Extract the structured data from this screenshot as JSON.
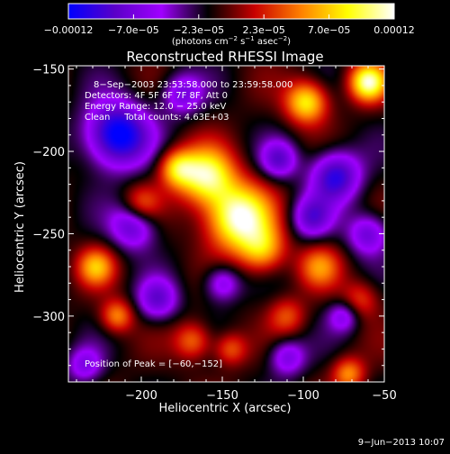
{
  "chart_data": {
    "type": "heatmap",
    "title": "Reconstructed RHESSI Image",
    "xlabel": "Heliocentric X (arcsec)",
    "ylabel": "Heliocentric Y (arcsec)",
    "xlim": [
      -245,
      -50
    ],
    "ylim": [
      -340,
      -148
    ],
    "x_ticks": [
      -200,
      -150,
      -100,
      -50
    ],
    "x_tick_labels": [
      "−200",
      "−150",
      "−100",
      "−50"
    ],
    "y_ticks": [
      -150,
      -200,
      -250,
      -300
    ],
    "y_tick_labels": [
      "−150",
      "−200",
      "−250",
      "−300"
    ],
    "colorbar": {
      "min": -0.00012,
      "max": 0.00012,
      "tick_labels": [
        "−0.00012",
        "−7.0e−05",
        "−2.3e−05",
        "2.3e−05",
        "7.0e−05",
        "0.00012"
      ],
      "unit_main": "(photons cm",
      "unit_exp1": "−2",
      "unit_s": " s",
      "unit_exp2": "−1",
      "unit_asec": " asec",
      "unit_exp3": "−2",
      "unit_close": ")",
      "colors": [
        "#0000ff",
        "#5a00c8",
        "#a000ff",
        "#000000",
        "#c80000",
        "#ff8000",
        "#ffff00",
        "#ffffff"
      ]
    },
    "annotations": {
      "time_range": "8−Sep−2003 23:53:58.000 to 23:59:58.000",
      "detectors": "Detectors: 4F 5F 6F 7F 8F, Att 0",
      "energy": "Energy Range: 12.0 − 25.0 keV",
      "clean": "Clean     Total counts: 4.63E+03",
      "peak": "Position of Peak = [−60,−152]"
    },
    "peak_position": [
      -60,
      -152
    ],
    "sources": [
      {
        "x": -140,
        "y": -240,
        "amp": 1.0,
        "sigma": 14
      },
      {
        "x": -160,
        "y": -215,
        "amp": 0.85,
        "sigma": 12
      },
      {
        "x": -178,
        "y": -210,
        "amp": 0.6,
        "sigma": 8
      },
      {
        "x": -98,
        "y": -170,
        "amp": 0.75,
        "sigma": 9
      },
      {
        "x": -60,
        "y": -158,
        "amp": 0.9,
        "sigma": 8
      },
      {
        "x": -125,
        "y": -260,
        "amp": 0.55,
        "sigma": 10
      },
      {
        "x": -228,
        "y": -270,
        "amp": 0.55,
        "sigma": 8
      },
      {
        "x": -215,
        "y": -300,
        "amp": 0.5,
        "sigma": 7
      },
      {
        "x": -90,
        "y": -270,
        "amp": 0.45,
        "sigma": 9
      },
      {
        "x": -72,
        "y": -335,
        "amp": 0.5,
        "sigma": 7
      },
      {
        "x": -168,
        "y": -315,
        "amp": 0.45,
        "sigma": 8
      },
      {
        "x": -145,
        "y": -320,
        "amp": 0.4,
        "sigma": 7
      },
      {
        "x": -110,
        "y": -300,
        "amp": 0.35,
        "sigma": 8
      },
      {
        "x": -200,
        "y": -232,
        "amp": 0.4,
        "sigma": 8
      },
      {
        "x": -65,
        "y": -290,
        "amp": 0.35,
        "sigma": 8
      },
      {
        "x": -215,
        "y": -190,
        "amp": -0.9,
        "sigma": 14
      },
      {
        "x": -80,
        "y": -215,
        "amp": -0.7,
        "sigma": 11
      },
      {
        "x": -205,
        "y": -245,
        "amp": -0.55,
        "sigma": 10
      },
      {
        "x": -115,
        "y": -205,
        "amp": -0.5,
        "sigma": 8
      },
      {
        "x": -95,
        "y": -240,
        "amp": -0.5,
        "sigma": 9
      },
      {
        "x": -150,
        "y": -280,
        "amp": -0.45,
        "sigma": 8
      },
      {
        "x": -190,
        "y": -290,
        "amp": -0.5,
        "sigma": 9
      },
      {
        "x": -60,
        "y": -250,
        "amp": -0.5,
        "sigma": 9
      },
      {
        "x": -110,
        "y": -325,
        "amp": -0.45,
        "sigma": 8
      },
      {
        "x": -235,
        "y": -330,
        "amp": -0.4,
        "sigma": 8
      },
      {
        "x": -175,
        "y": -165,
        "amp": -0.45,
        "sigma": 9
      },
      {
        "x": -75,
        "y": -300,
        "amp": -0.4,
        "sigma": 7
      }
    ]
  },
  "footer": {
    "timestamp": "9−Jun−2013 10:07"
  }
}
